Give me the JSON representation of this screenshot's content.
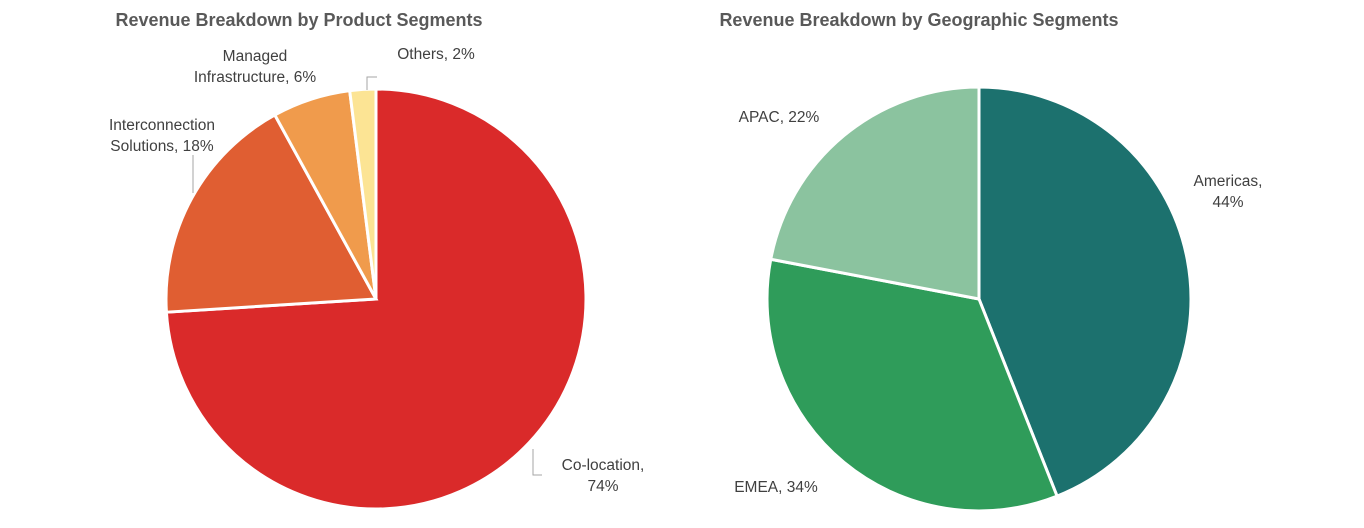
{
  "chart_data": [
    {
      "type": "pie",
      "title": "Revenue Breakdown by Product Segments",
      "slices": [
        {
          "name": "Co-location",
          "value": 74,
          "color": "#DA2A2A",
          "label_lines": [
            "Co-location,",
            "74%"
          ]
        },
        {
          "name": "Interconnection Solutions",
          "value": 18,
          "color": "#E05E32",
          "label_lines": [
            "Interconnection",
            "Solutions, 18%"
          ]
        },
        {
          "name": "Managed Infrastructure",
          "value": 6,
          "color": "#F09B4C",
          "label_lines": [
            "Managed",
            "Infrastructure, 6%"
          ]
        },
        {
          "name": "Others",
          "value": 2,
          "color": "#FCE494",
          "label_lines": [
            "Others, 2%"
          ]
        }
      ]
    },
    {
      "type": "pie",
      "title": "Revenue Breakdown by Geographic Segments",
      "slices": [
        {
          "name": "Americas",
          "value": 44,
          "color": "#1C716E",
          "label_lines": [
            "Americas,",
            "44%"
          ]
        },
        {
          "name": "EMEA",
          "value": 34,
          "color": "#2F9C5A",
          "label_lines": [
            "EMEA, 34%"
          ]
        },
        {
          "name": "APAC",
          "value": 22,
          "color": "#8BC39F",
          "label_lines": [
            "APAC, 22%"
          ]
        }
      ]
    }
  ]
}
